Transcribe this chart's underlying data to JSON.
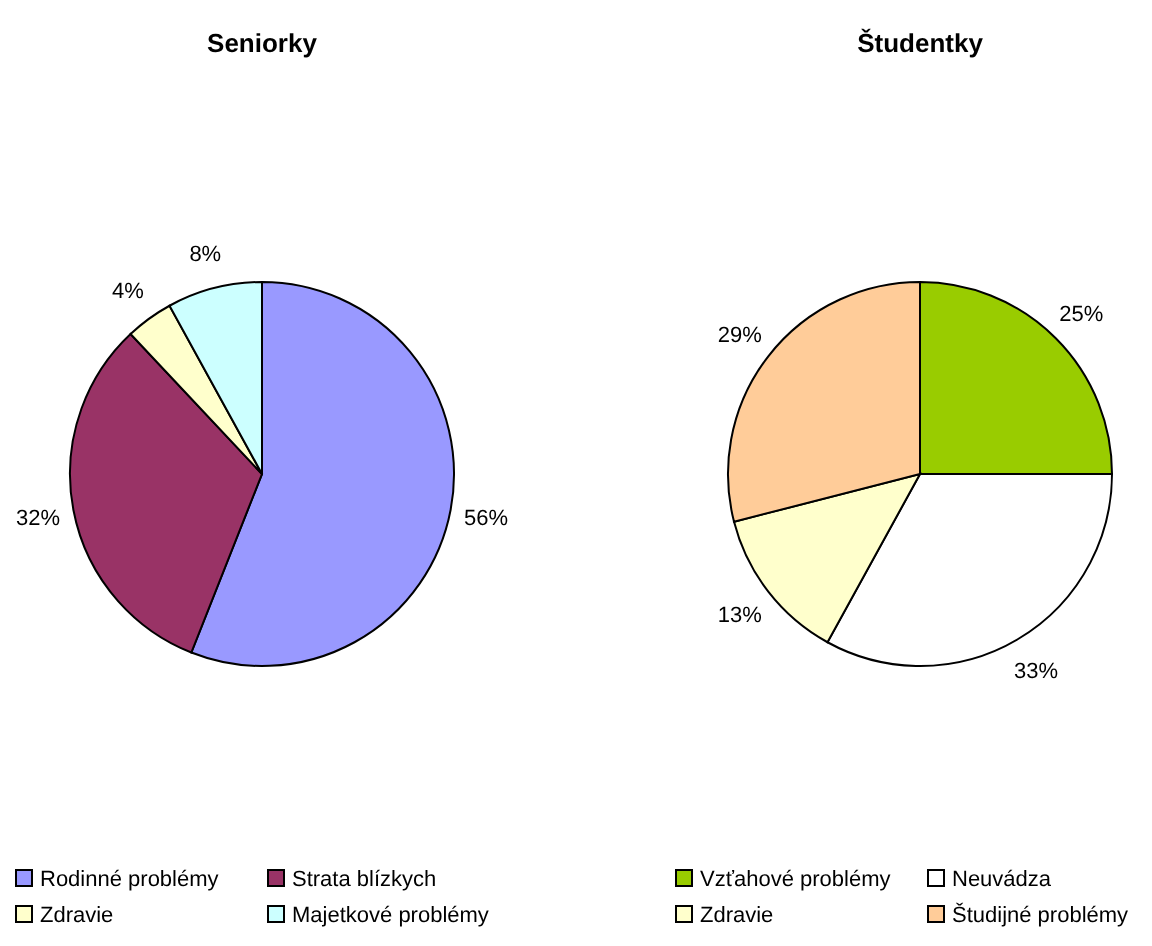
{
  "chart_data": [
    {
      "type": "pie",
      "title": "Seniorky",
      "categories": [
        "Rodinné problémy",
        "Strata blízkych",
        "Zdravie",
        "Majetkové problémy"
      ],
      "values": [
        56,
        32,
        4,
        8
      ],
      "colors": [
        "#9999ff",
        "#993366",
        "#ffffcc",
        "#ccffff"
      ],
      "value_labels": [
        "56%",
        "32%",
        "4%",
        "8%"
      ],
      "legend": "bottom"
    },
    {
      "type": "pie",
      "title": "Študentky",
      "categories": [
        "Vzťahové problémy",
        "Neuvádza",
        "Zdravie",
        "Študijné problémy"
      ],
      "values": [
        25,
        33,
        13,
        29
      ],
      "colors": [
        "#99cc00",
        "#ffffff",
        "#ffffcc",
        "#ffcc99"
      ],
      "value_labels": [
        "25%",
        "33%",
        "13%",
        "29%"
      ],
      "legend": "bottom"
    }
  ]
}
